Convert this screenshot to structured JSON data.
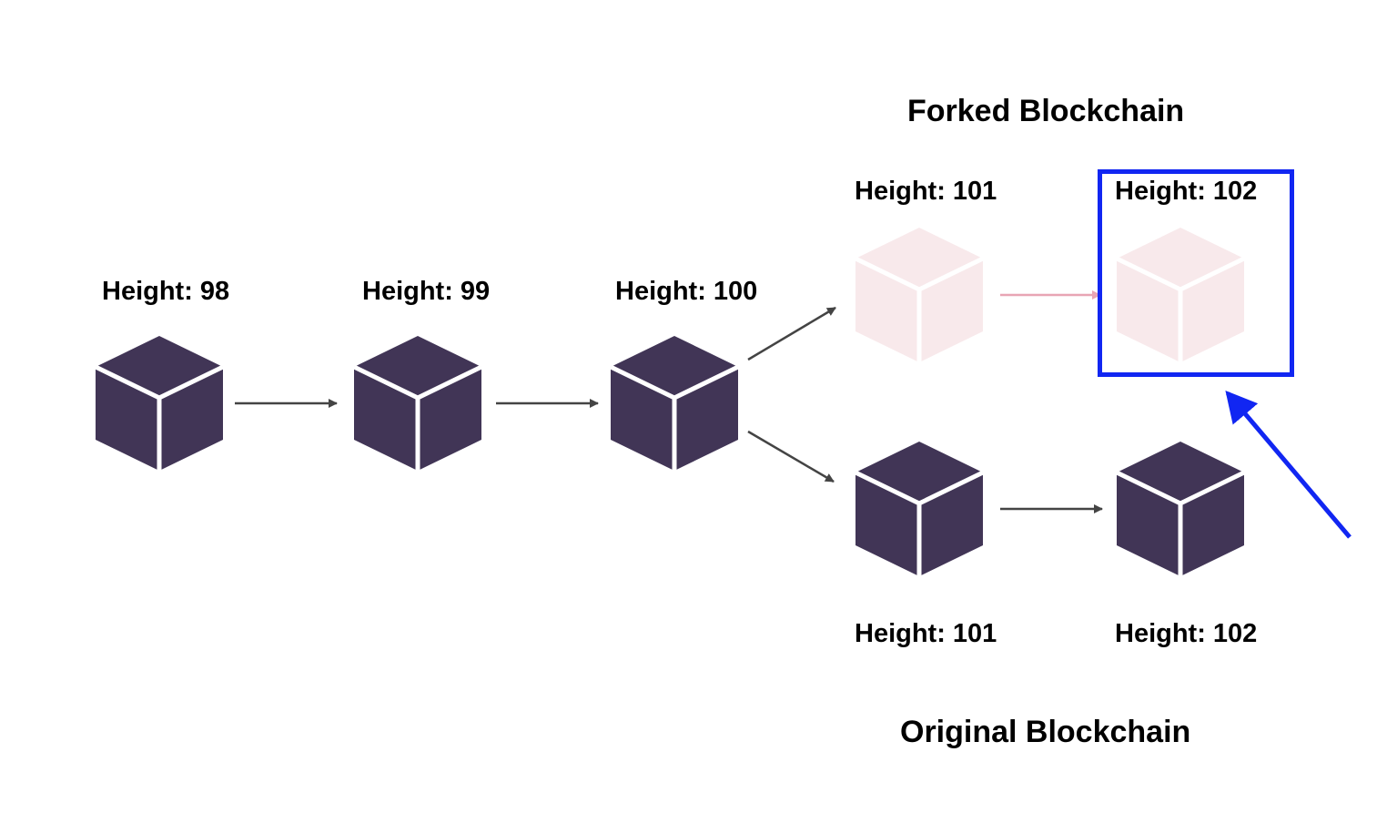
{
  "colors": {
    "block": "#413556",
    "block_faded": "#f8e9eb",
    "arrow": "#444444",
    "arrow_faded": "#e8a5b4",
    "highlight": "#1126f2",
    "text": "#000000"
  },
  "titles": {
    "forked": "Forked Blockchain",
    "original": "Original Blockchain"
  },
  "blocks": {
    "b98": {
      "label": "Height: 98"
    },
    "b99": {
      "label": "Height: 99"
    },
    "b100": {
      "label": "Height: 100"
    },
    "fork101": {
      "label": "Height: 101"
    },
    "fork102": {
      "label": "Height: 102"
    },
    "orig101": {
      "label": "Height: 101"
    },
    "orig102": {
      "label": "Height: 102"
    }
  },
  "icons": {
    "block": "cube-icon",
    "arrow": "arrow-right-icon",
    "pointer": "pointer-arrow-icon"
  }
}
